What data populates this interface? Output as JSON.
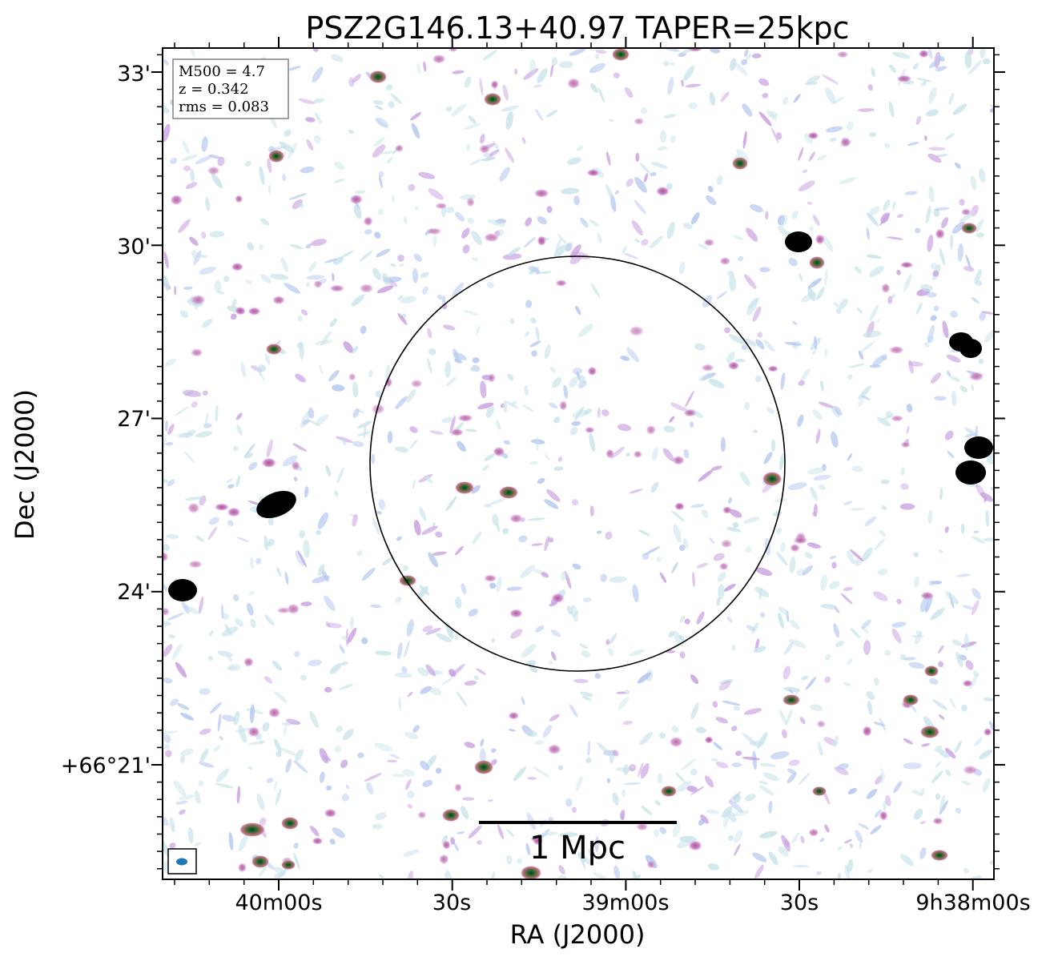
{
  "title": "PSZ2G146.13+40.97 TAPER=25kpc",
  "x_axis": {
    "label": "RA (J2000)",
    "ticks": [
      "40m00s",
      "30s",
      "39m00s",
      "30s",
      "9h38m00s"
    ]
  },
  "y_axis": {
    "label": "Dec (J2000)",
    "ticks": [
      "33'",
      "30'",
      "27'",
      "24'",
      "+66°21'"
    ]
  },
  "info_box": {
    "mass_line": "M500 = 4.7",
    "z_line": "z = 0.342",
    "rms_line": "rms = 0.083"
  },
  "scale_bar": {
    "label": "1 Mpc"
  },
  "colors": {
    "noise_light": "#c9e4ea",
    "noise_blue": "#b3c6ef",
    "noise_purple": "#c8a0e0",
    "source_pink": "#c9789e",
    "source_core": "#2c6b3a",
    "bright_source": "#000000",
    "beam": "#1f77b4"
  }
}
